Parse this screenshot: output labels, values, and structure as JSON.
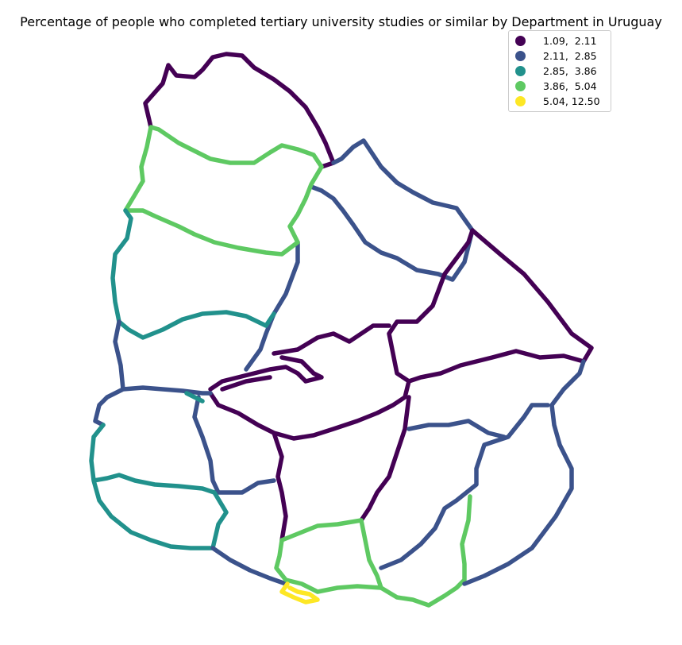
{
  "map": {
    "title": "Percentage of people who completed tertiary university studies or similar by Department in Uruguay",
    "legend": {
      "entries": [
        {
          "label": "1.09,  2.11",
          "color": "#440154"
        },
        {
          "label": "2.11,  2.85",
          "color": "#3b528b"
        },
        {
          "label": "2.85,  3.86",
          "color": "#21918c"
        },
        {
          "label": "3.86,  5.04",
          "color": "#5ec962"
        },
        {
          "label": "5.04, 12.50",
          "color": "#fde725"
        }
      ]
    }
  }
}
